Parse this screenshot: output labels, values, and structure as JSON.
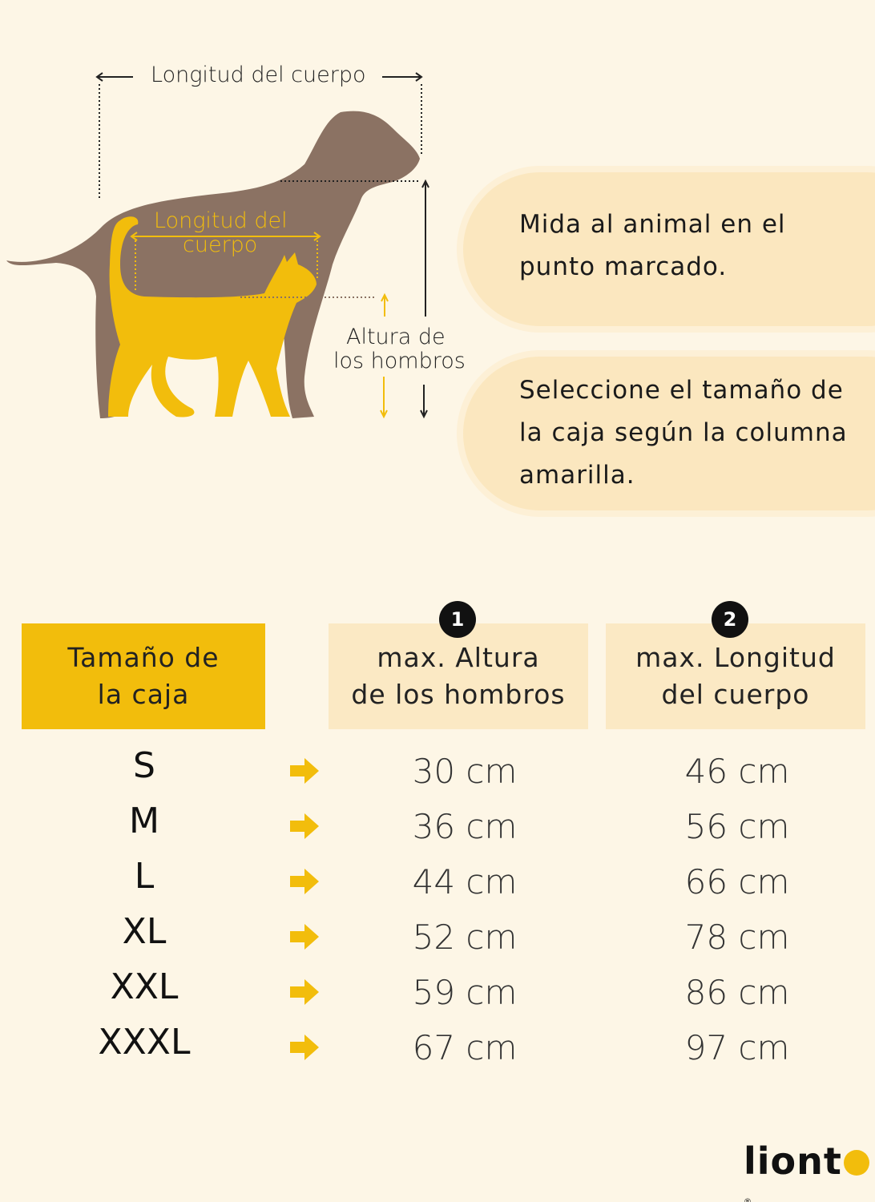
{
  "diagram": {
    "dog_length_label": "Longitud del cuerpo",
    "cat_length_label_line1": "Longitud del",
    "cat_length_label_line2": "cuerpo",
    "shoulder_label_line1": "Altura de",
    "shoulder_label_line2": "los hombros",
    "colors": {
      "dog": "#8b7263",
      "cat": "#f2bd0c"
    }
  },
  "instructions": [
    {
      "line1": "Mida al animal en el",
      "line2": "punto marcado."
    },
    {
      "line1": "Seleccione el tamaño de",
      "line2": "la caja según la columna",
      "line3": "amarilla."
    }
  ],
  "table": {
    "headers": [
      {
        "line1": "Tamaño de",
        "line2": "la caja"
      },
      {
        "badge": "1",
        "line1": "max. Altura",
        "line2": "de los hombros"
      },
      {
        "badge": "2",
        "line1": "max. Longitud",
        "line2": "del cuerpo"
      }
    ],
    "rows": [
      {
        "size": "S",
        "height": "30 cm",
        "length": "46 cm"
      },
      {
        "size": "M",
        "height": "36 cm",
        "length": "56 cm"
      },
      {
        "size": "L",
        "height": "44 cm",
        "length": "66 cm"
      },
      {
        "size": "XL",
        "height": "52 cm",
        "length": "78 cm"
      },
      {
        "size": "XXL",
        "height": "59 cm",
        "length": "86 cm"
      },
      {
        "size": "XXXL",
        "height": "67 cm",
        "length": "97 cm"
      }
    ],
    "arrow_icon": "arrow-right-icon",
    "colors": {
      "accent": "#f2bd0c",
      "header_light": "#fbe9c4"
    }
  },
  "brand": {
    "logo": "lionto"
  }
}
